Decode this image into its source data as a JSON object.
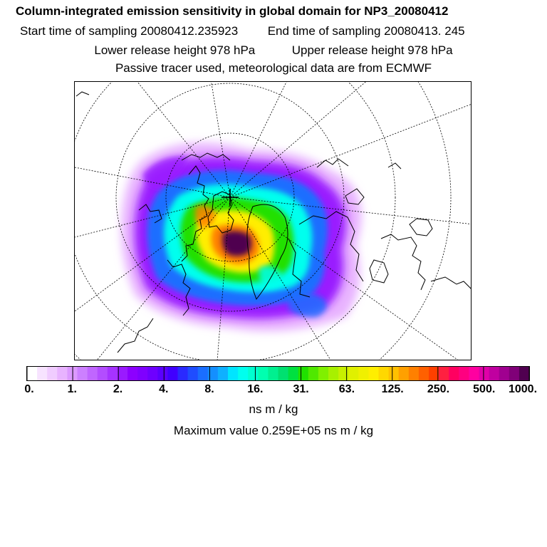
{
  "header": {
    "title": "Column-integrated emission sensitivity in global domain for NP3_20080412",
    "start_label": "Start time of sampling 20080412.235923",
    "end_label": "End time of sampling 20080413.   245",
    "lower_label": "Lower release height  978 hPa",
    "upper_label": "Upper release height  978 hPa",
    "tracer_note": "Passive tracer used, meteorological data are from ECMWF"
  },
  "chart_data": {
    "type": "heatmap",
    "title": "Column-integrated emission sensitivity in global domain for NP3_20080412",
    "projection": "north polar stereographic",
    "sampling_start": "20080412.235923",
    "sampling_end": "20080413.   245",
    "lower_release_height_hPa": 978,
    "upper_release_height_hPa": 978,
    "colorbar": {
      "tick_labels": [
        "0.",
        "1.",
        "2.",
        "4.",
        "8.",
        "16.",
        "31.",
        "63.",
        "125.",
        "250.",
        "500.",
        "1000."
      ],
      "tick_values": [
        0,
        1,
        2,
        4,
        8,
        16,
        31,
        63,
        125,
        250,
        500,
        1000
      ],
      "unit": "ns m / kg",
      "colors": [
        "#ffffff",
        "#f7e3ff",
        "#f0ccff",
        "#e8b3ff",
        "#dc99ff",
        "#cc80ff",
        "#c066ff",
        "#b34dff",
        "#a633ff",
        "#9a1aff",
        "#8c00ff",
        "#7f00ff",
        "#6e00ff",
        "#5a00ff",
        "#4000ff",
        "#2a2aff",
        "#1f4dff",
        "#1a6eff",
        "#148fff",
        "#0fb0ff",
        "#00e5ff",
        "#00ffee",
        "#00ffd0",
        "#00ffb0",
        "#00f090",
        "#00e070",
        "#00e040",
        "#20e000",
        "#50e800",
        "#80f000",
        "#a8f000",
        "#c8f000",
        "#e0f000",
        "#f0f000",
        "#ffee00",
        "#ffd800",
        "#ffc000",
        "#ffa000",
        "#ff8000",
        "#ff6000",
        "#ff4000",
        "#ff2040",
        "#ff0060",
        "#ff0080",
        "#ff00a0",
        "#e000a8",
        "#c000a0",
        "#a00090",
        "#800078",
        "#500050"
      ],
      "max_value_text": "Maximum value  0.259E+05 ns m / kg"
    },
    "sensitivity_regions": [
      {
        "name": "outer haze",
        "level": 1,
        "color": "#e8b3ff"
      },
      {
        "name": "violet band",
        "level": 3,
        "color": "#9a1aff"
      },
      {
        "name": "blue band",
        "level": 6,
        "color": "#1a6eff"
      },
      {
        "name": "cyan band",
        "level": 12,
        "color": "#00ffee"
      },
      {
        "name": "green band",
        "level": 25,
        "color": "#20e000"
      },
      {
        "name": "yellow band",
        "level": 60,
        "color": "#ffee00"
      },
      {
        "name": "orange core",
        "level": 150,
        "color": "#ff8000"
      },
      {
        "name": "dark core",
        "level": 1000,
        "color": "#500050"
      }
    ]
  }
}
